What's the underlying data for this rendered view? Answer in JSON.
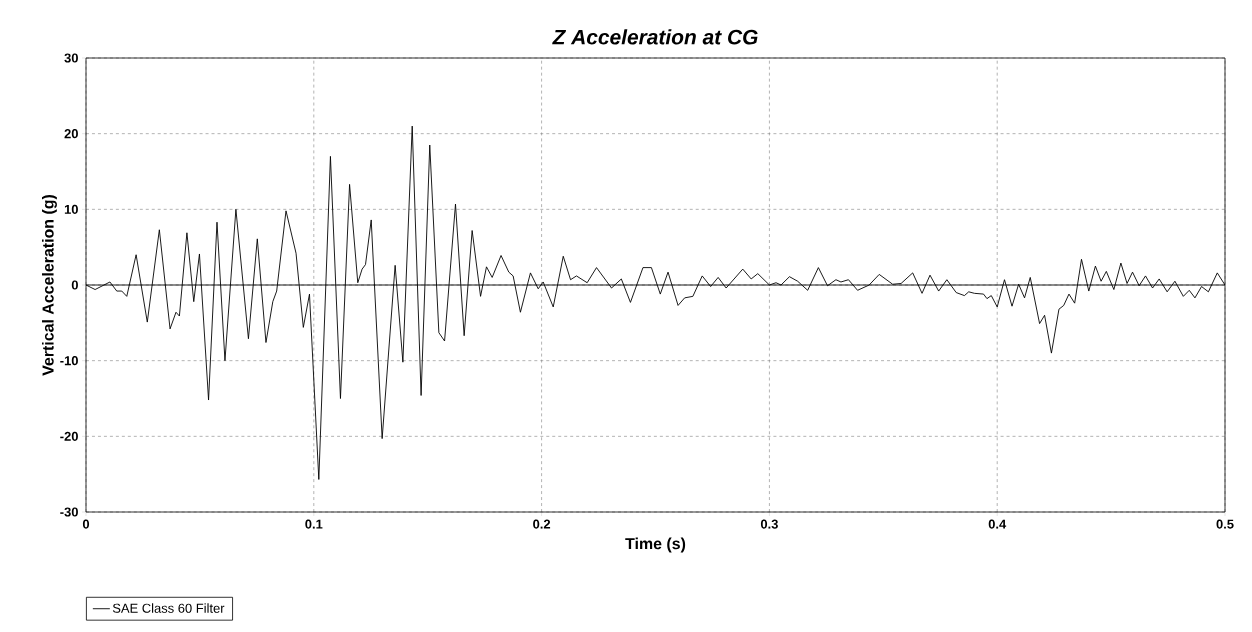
{
  "chart_data": {
    "type": "line",
    "title": "Z Acceleration at CG",
    "xlabel": "Time (s)",
    "ylabel": "Vertical Acceleration (g)",
    "xlim": [
      0,
      0.5
    ],
    "ylim": [
      -30,
      30
    ],
    "xticks": [
      0,
      0.1,
      0.2,
      0.3,
      0.4,
      0.5
    ],
    "yticks": [
      -30,
      -20,
      -10,
      0,
      10,
      20,
      30
    ],
    "grid": true,
    "legend": "bottom left",
    "ref_lines": [
      {
        "axis": "y",
        "value": 0,
        "color": "#000000"
      }
    ],
    "series": [
      {
        "name": "SAE Class 60 Filter",
        "color": "#000000",
        "x": [
          0,
          0.004,
          0.0105,
          0.0135,
          0.0157,
          0.0179,
          0.022,
          0.0269,
          0.0322,
          0.0369,
          0.0395,
          0.041,
          0.0443,
          0.0473,
          0.0498,
          0.0538,
          0.0575,
          0.061,
          0.0658,
          0.0713,
          0.0752,
          0.079,
          0.082,
          0.0837,
          0.0878,
          0.0922,
          0.0954,
          0.0981,
          0.1022,
          0.1073,
          0.1117,
          0.1157,
          0.1193,
          0.1212,
          0.1227,
          0.1252,
          0.13,
          0.1357,
          0.1391,
          0.1432,
          0.1471,
          0.1509,
          0.1549,
          0.1574,
          0.1622,
          0.166,
          0.1695,
          0.1732,
          0.1758,
          0.1783,
          0.1822,
          0.1856,
          0.1875,
          0.1907,
          0.1951,
          0.1985,
          0.2007,
          0.2051,
          0.2095,
          0.2127,
          0.2153,
          0.22,
          0.2241,
          0.2307,
          0.235,
          0.239,
          0.2445,
          0.2482,
          0.2521,
          0.2555,
          0.2599,
          0.2628,
          0.2664,
          0.2705,
          0.2742,
          0.2775,
          0.281,
          0.2883,
          0.292,
          0.2949,
          0.3,
          0.3029,
          0.3051,
          0.3088,
          0.3124,
          0.3168,
          0.3215,
          0.3255,
          0.3292,
          0.3314,
          0.3347,
          0.3387,
          0.3438,
          0.3482,
          0.3541,
          0.3578,
          0.3629,
          0.367,
          0.3705,
          0.3743,
          0.3779,
          0.382,
          0.3856,
          0.3875,
          0.39,
          0.394,
          0.3955,
          0.3974,
          0.4,
          0.4032,
          0.4065,
          0.4094,
          0.412,
          0.4145,
          0.4186,
          0.4208,
          0.4238,
          0.4271,
          0.4292,
          0.4315,
          0.434,
          0.437,
          0.4402,
          0.4431,
          0.4456,
          0.4479,
          0.4512,
          0.4543,
          0.457,
          0.4594,
          0.4623,
          0.4651,
          0.4682,
          0.4711,
          0.4746,
          0.478,
          0.4817,
          0.4843,
          0.4868,
          0.4897,
          0.4927,
          0.4966,
          0.5
        ],
        "values": [
          0,
          -0.6,
          0.4,
          -0.8,
          -0.8,
          -1.5,
          4.0,
          -4.9,
          7.3,
          -5.8,
          -3.6,
          -4.1,
          6.9,
          -2.2,
          4.1,
          -15.2,
          8.3,
          -10.0,
          10.0,
          -7.1,
          6.1,
          -7.6,
          -2.2,
          -0.8,
          9.8,
          4.2,
          -5.6,
          -1.2,
          -25.7,
          17.0,
          -15.0,
          13.3,
          0.3,
          2.1,
          2.7,
          8.6,
          -20.3,
          2.6,
          -10.2,
          21.0,
          -14.6,
          18.5,
          -6.3,
          -7.4,
          10.7,
          -6.7,
          7.2,
          -1.5,
          2.4,
          1.0,
          3.9,
          1.7,
          1.2,
          -3.6,
          1.6,
          -0.5,
          0.4,
          -2.9,
          3.8,
          0.7,
          1.2,
          0.3,
          2.3,
          -0.4,
          0.8,
          -2.3,
          2.3,
          2.3,
          -1.2,
          1.7,
          -2.7,
          -1.7,
          -1.5,
          1.2,
          -0.2,
          1.0,
          -0.4,
          2.1,
          0.8,
          1.5,
          0,
          0.3,
          0,
          1.1,
          0.5,
          -0.7,
          2.3,
          -0.1,
          0.7,
          0.4,
          0.7,
          -0.7,
          0,
          1.4,
          0.1,
          0.2,
          1.6,
          -1.1,
          1.3,
          -0.8,
          0.7,
          -1.0,
          -1.4,
          -0.9,
          -1.1,
          -1.2,
          -1.8,
          -1.4,
          -2.9,
          0.7,
          -2.8,
          0.1,
          -1.7,
          1.0,
          -5.1,
          -4.0,
          -9.0,
          -3.2,
          -2.7,
          -1.2,
          -2.4,
          3.4,
          -0.8,
          2.5,
          0.5,
          1.8,
          -0.6,
          2.9,
          0.2,
          1.7,
          -0.1,
          1.2,
          -0.4,
          0.8,
          -0.9,
          0.5,
          -1.5,
          -0.7,
          -1.7,
          -0.2,
          -0.9,
          1.6,
          0
        ]
      }
    ]
  }
}
